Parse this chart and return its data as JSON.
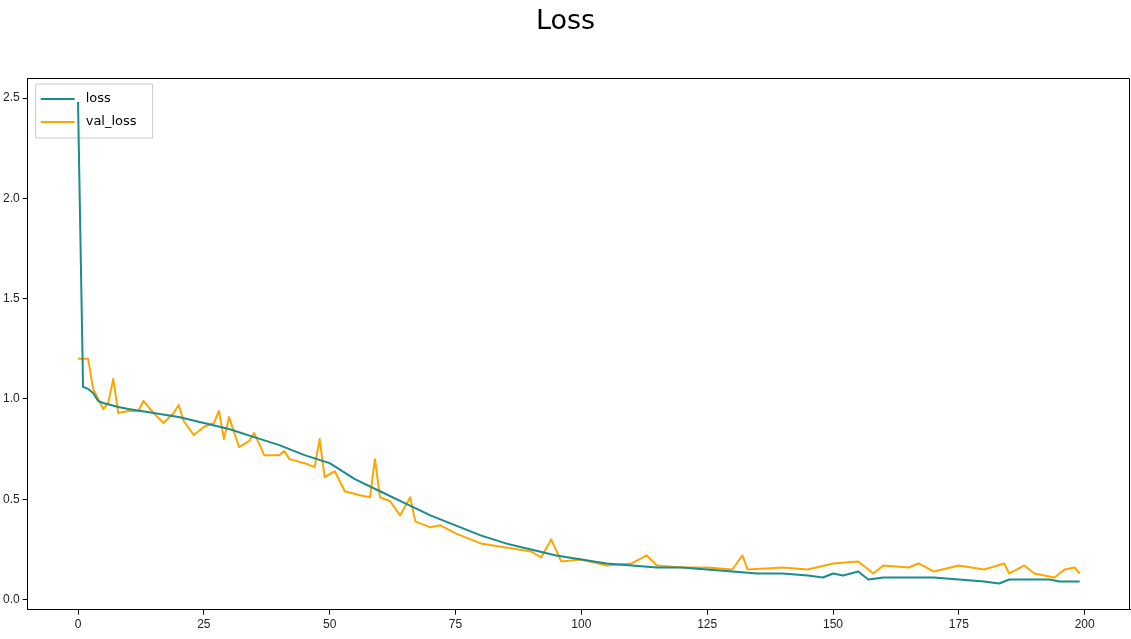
{
  "chart_data": {
    "type": "line",
    "title": "Loss",
    "xlim": [
      -10,
      209
    ],
    "ylim": [
      -0.05,
      2.6
    ],
    "xticks": [
      0,
      25,
      50,
      75,
      100,
      125,
      150,
      175,
      200
    ],
    "yticks": [
      {
        "value": 0,
        "label": "0.0"
      },
      {
        "value": 0.5,
        "label": "0.5"
      },
      {
        "value": 1,
        "label": "1.0"
      },
      {
        "value": 1.5,
        "label": "1.5"
      },
      {
        "value": 2,
        "label": "2.0"
      },
      {
        "value": 2.5,
        "label": "2.5"
      }
    ],
    "grid": false,
    "legend": "top left",
    "marker": "none",
    "line_style": "solid",
    "series": [
      {
        "name": "loss",
        "color": "#1a8c8c",
        "x": [
          0,
          1,
          2,
          3,
          4,
          5,
          8,
          10,
          15,
          20,
          25,
          30,
          35,
          40,
          45,
          50,
          55,
          60,
          65,
          70,
          75,
          80,
          85,
          90,
          95,
          100,
          105,
          110,
          115,
          120,
          125,
          130,
          135,
          140,
          145,
          148,
          150,
          152,
          155,
          157,
          160,
          165,
          170,
          175,
          180,
          183,
          185,
          190,
          193,
          195,
          199
        ],
        "values": [
          2.48,
          1.06,
          1.05,
          1.03,
          0.99,
          0.98,
          0.96,
          0.95,
          0.93,
          0.91,
          0.88,
          0.85,
          0.81,
          0.77,
          0.72,
          0.68,
          0.6,
          0.54,
          0.48,
          0.42,
          0.37,
          0.32,
          0.28,
          0.25,
          0.22,
          0.2,
          0.18,
          0.17,
          0.16,
          0.16,
          0.15,
          0.14,
          0.13,
          0.13,
          0.12,
          0.11,
          0.13,
          0.12,
          0.14,
          0.1,
          0.11,
          0.11,
          0.11,
          0.1,
          0.09,
          0.08,
          0.1,
          0.1,
          0.1,
          0.09,
          0.09
        ]
      },
      {
        "name": "val_loss",
        "color": "#ffa500",
        "x": [
          0,
          2,
          3,
          5,
          6,
          7,
          8,
          10,
          12,
          13,
          15,
          17,
          19,
          20,
          21,
          23,
          25,
          27,
          28,
          29,
          30,
          32,
          34,
          35,
          37,
          40,
          41,
          42,
          45,
          47,
          48,
          49,
          51,
          53,
          56,
          58,
          59,
          60,
          62,
          64,
          66,
          67,
          70,
          72,
          75,
          78,
          80,
          85,
          90,
          92,
          94,
          96,
          100,
          105,
          110,
          113,
          115,
          120,
          125,
          130,
          132,
          133,
          140,
          145,
          150,
          155,
          158,
          160,
          165,
          167,
          170,
          175,
          180,
          184,
          185,
          188,
          190,
          194,
          196,
          198,
          199
        ],
        "values": [
          1.2,
          1.2,
          1.05,
          0.95,
          0.98,
          1.1,
          0.93,
          0.94,
          0.94,
          0.99,
          0.93,
          0.88,
          0.93,
          0.97,
          0.89,
          0.82,
          0.86,
          0.88,
          0.94,
          0.8,
          0.91,
          0.76,
          0.79,
          0.83,
          0.72,
          0.72,
          0.74,
          0.7,
          0.68,
          0.66,
          0.8,
          0.61,
          0.64,
          0.54,
          0.52,
          0.51,
          0.7,
          0.51,
          0.49,
          0.42,
          0.51,
          0.39,
          0.36,
          0.37,
          0.33,
          0.3,
          0.28,
          0.26,
          0.24,
          0.21,
          0.3,
          0.19,
          0.2,
          0.17,
          0.18,
          0.22,
          0.17,
          0.16,
          0.16,
          0.15,
          0.22,
          0.15,
          0.16,
          0.15,
          0.18,
          0.19,
          0.13,
          0.17,
          0.16,
          0.18,
          0.14,
          0.17,
          0.15,
          0.18,
          0.13,
          0.17,
          0.13,
          0.11,
          0.15,
          0.16,
          0.13
        ]
      }
    ]
  }
}
